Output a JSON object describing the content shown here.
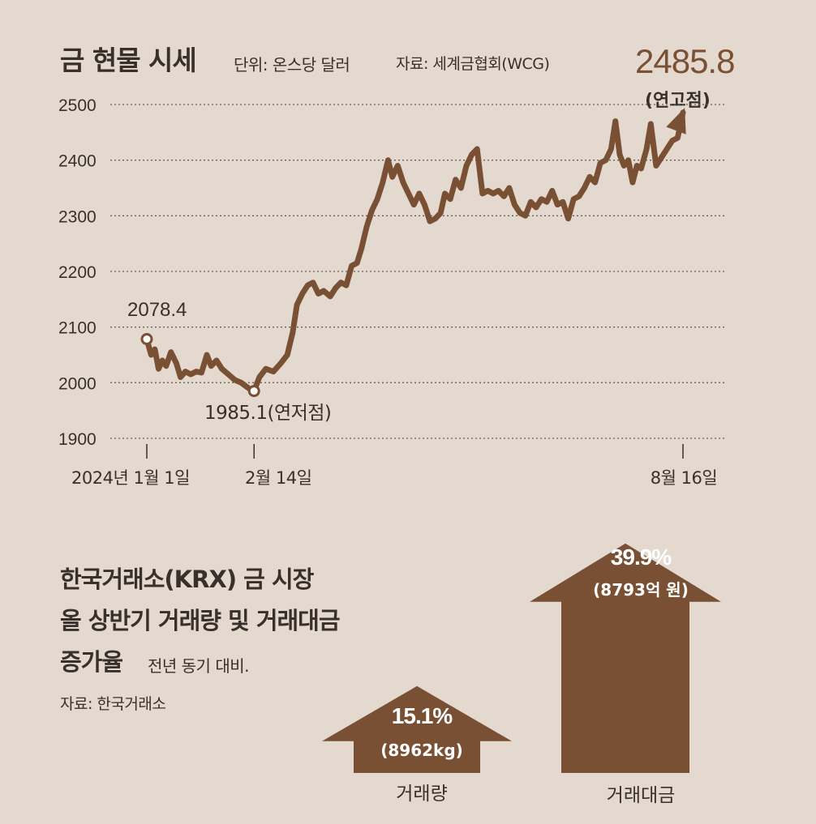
{
  "colors": {
    "background": "#e3d9cf",
    "line": "#7a5034",
    "text": "#3a302b",
    "arrow": "#7a5034"
  },
  "header": {
    "title": "금 현물 시세",
    "unit": "단위: 온스당 달러",
    "source": "자료: 세계금협회(WCG)"
  },
  "chart_data": [
    {
      "type": "line",
      "title": "금 현물 시세",
      "ylabel": "",
      "xlabel": "",
      "ylim": [
        1900,
        2500
      ],
      "yticks": [
        2500,
        2400,
        2300,
        2200,
        2100,
        2000,
        1900
      ],
      "xticks": [
        {
          "t": 0.0,
          "label": "2024년 1월 1일"
        },
        {
          "t": 0.2,
          "label": "2월 14일"
        },
        {
          "t": 1.0,
          "label": "8월 16일"
        }
      ],
      "series": [
        {
          "values": [
            [
              0.0,
              2078.4
            ],
            [
              0.008,
              2050
            ],
            [
              0.015,
              2060
            ],
            [
              0.022,
              2025
            ],
            [
              0.029,
              2040
            ],
            [
              0.036,
              2030
            ],
            [
              0.045,
              2055
            ],
            [
              0.055,
              2035
            ],
            [
              0.063,
              2010
            ],
            [
              0.072,
              2020
            ],
            [
              0.082,
              2015
            ],
            [
              0.092,
              2020
            ],
            [
              0.102,
              2018
            ],
            [
              0.112,
              2050
            ],
            [
              0.12,
              2030
            ],
            [
              0.13,
              2040
            ],
            [
              0.14,
              2025
            ],
            [
              0.152,
              2015
            ],
            [
              0.164,
              2005
            ],
            [
              0.176,
              2000
            ],
            [
              0.19,
              1990
            ],
            [
              0.2,
              1985.1
            ],
            [
              0.21,
              2010
            ],
            [
              0.222,
              2025
            ],
            [
              0.236,
              2020
            ],
            [
              0.25,
              2035
            ],
            [
              0.262,
              2050
            ],
            [
              0.272,
              2090
            ],
            [
              0.28,
              2140
            ],
            [
              0.29,
              2160
            ],
            [
              0.3,
              2175
            ],
            [
              0.31,
              2180
            ],
            [
              0.32,
              2160
            ],
            [
              0.33,
              2165
            ],
            [
              0.342,
              2155
            ],
            [
              0.352,
              2170
            ],
            [
              0.362,
              2180
            ],
            [
              0.372,
              2175
            ],
            [
              0.382,
              2210
            ],
            [
              0.392,
              2215
            ],
            [
              0.4,
              2240
            ],
            [
              0.41,
              2280
            ],
            [
              0.42,
              2310
            ],
            [
              0.43,
              2330
            ],
            [
              0.44,
              2360
            ],
            [
              0.45,
              2400
            ],
            [
              0.458,
              2370
            ],
            [
              0.468,
              2390
            ],
            [
              0.478,
              2360
            ],
            [
              0.488,
              2340
            ],
            [
              0.498,
              2320
            ],
            [
              0.508,
              2340
            ],
            [
              0.518,
              2320
            ],
            [
              0.528,
              2290
            ],
            [
              0.538,
              2295
            ],
            [
              0.548,
              2305
            ],
            [
              0.556,
              2340
            ],
            [
              0.566,
              2330
            ],
            [
              0.576,
              2365
            ],
            [
              0.586,
              2350
            ],
            [
              0.596,
              2390
            ],
            [
              0.606,
              2410
            ],
            [
              0.616,
              2420
            ],
            [
              0.626,
              2340
            ],
            [
              0.636,
              2345
            ],
            [
              0.646,
              2340
            ],
            [
              0.656,
              2345
            ],
            [
              0.666,
              2335
            ],
            [
              0.676,
              2350
            ],
            [
              0.686,
              2320
            ],
            [
              0.696,
              2305
            ],
            [
              0.706,
              2300
            ],
            [
              0.716,
              2325
            ],
            [
              0.726,
              2315
            ],
            [
              0.736,
              2330
            ],
            [
              0.746,
              2325
            ],
            [
              0.756,
              2345
            ],
            [
              0.766,
              2320
            ],
            [
              0.776,
              2325
            ],
            [
              0.786,
              2295
            ],
            [
              0.796,
              2330
            ],
            [
              0.806,
              2335
            ],
            [
              0.816,
              2350
            ],
            [
              0.826,
              2370
            ],
            [
              0.836,
              2360
            ],
            [
              0.846,
              2395
            ],
            [
              0.856,
              2400
            ],
            [
              0.866,
              2420
            ],
            [
              0.874,
              2470
            ],
            [
              0.882,
              2410
            ],
            [
              0.89,
              2390
            ],
            [
              0.898,
              2400
            ],
            [
              0.906,
              2360
            ],
            [
              0.914,
              2390
            ],
            [
              0.922,
              2385
            ],
            [
              0.932,
              2420
            ],
            [
              0.94,
              2465
            ],
            [
              0.95,
              2390
            ],
            [
              0.96,
              2405
            ],
            [
              0.97,
              2420
            ],
            [
              0.98,
              2435
            ],
            [
              0.99,
              2440
            ],
            [
              1.0,
              2485.8
            ]
          ]
        }
      ],
      "annotations": [
        {
          "text": "2078.4",
          "t": 0.0,
          "y": 2078.4
        },
        {
          "text": "1985.1(연저점)",
          "t": 0.2,
          "y": 1985.1
        },
        {
          "text": "2485.8",
          "t": 1.0,
          "y": 2485.8
        },
        {
          "text": "(연고점)",
          "t": 1.0,
          "y": 2485.8
        }
      ],
      "grid": true
    },
    {
      "type": "bar",
      "title": "한국거래소(KRX) 금 시장 올 상반기 거래량 및 거래대금 증가율",
      "categories": [
        "거래량",
        "거래대금"
      ],
      "values": [
        15.1,
        39.9
      ],
      "units": [
        "%",
        "%"
      ],
      "sublabels": [
        "(8962kg)",
        "(8793억 원)"
      ]
    }
  ],
  "section2": {
    "line1": "한국거래소(KRX) 금 시장",
    "line2": "올 상반기 거래량 및 거래대금",
    "line3": "증가율",
    "basis": "전년 동기 대비.",
    "source": "자료: 한국거래소",
    "bars": [
      {
        "pct": "15.1%",
        "sub": "(8962kg)",
        "label": "거래량"
      },
      {
        "pct": "39.9%",
        "sub": "(8793억 원)",
        "label": "거래대금"
      }
    ]
  },
  "peak": {
    "value": "2485.8",
    "note": "(연고점)"
  },
  "low": {
    "text": "1985.1(연저점)"
  },
  "start": {
    "text": "2078.4"
  }
}
